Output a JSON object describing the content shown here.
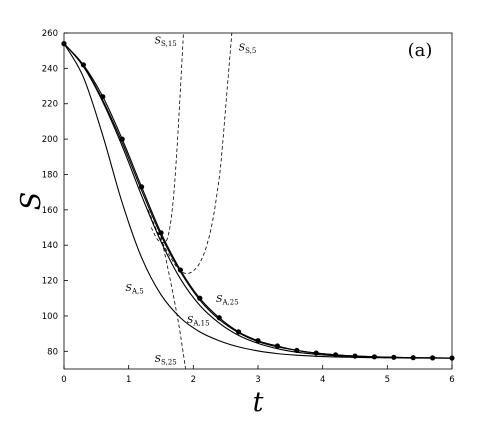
{
  "chart_data": {
    "type": "line",
    "panel_label": "(a)",
    "xlabel": "t",
    "ylabel": "S",
    "xlim": [
      0,
      6
    ],
    "ylim": [
      70,
      260
    ],
    "xticks": [
      0,
      1,
      2,
      3,
      4,
      5,
      6
    ],
    "yticks": [
      80,
      100,
      120,
      140,
      160,
      180,
      200,
      220,
      240,
      260
    ],
    "grid": false,
    "legend": "none",
    "series": [
      {
        "name": "",
        "style": "solid",
        "markers": "dot",
        "x": [
          0,
          0.3,
          0.6,
          0.9,
          1.2,
          1.5,
          1.8,
          2.1,
          2.4,
          2.7,
          3.0,
          3.3,
          3.6,
          3.9,
          4.2,
          4.5,
          4.8,
          5.1,
          5.4,
          5.7,
          6.0
        ],
        "y": [
          254,
          242,
          224,
          200,
          173,
          147,
          126,
          110,
          99,
          91,
          86,
          83,
          80.5,
          79,
          78,
          77.3,
          76.9,
          76.6,
          76.4,
          76.3,
          76.2
        ]
      },
      {
        "name": "S_A,25",
        "style": "solid",
        "x": [
          0,
          0.3,
          0.6,
          0.9,
          1.2,
          1.5,
          1.8,
          2.1,
          2.4,
          2.7,
          3.0,
          3.3,
          3.6,
          3.9,
          4.2,
          4.5,
          4.8,
          5.1,
          5.4,
          5.7,
          6.0
        ],
        "y": [
          254,
          241.5,
          222,
          198,
          171,
          145.5,
          125,
          109,
          98,
          90.5,
          85.5,
          82.5,
          80.5,
          79,
          78,
          77.3,
          76.9,
          76.6,
          76.4,
          76.3,
          76.2
        ]
      },
      {
        "name": "S_A,15",
        "style": "solid",
        "x": [
          0,
          0.3,
          0.6,
          0.9,
          1.2,
          1.5,
          1.8,
          2.1,
          2.4,
          2.7,
          3.0,
          3.3,
          3.6,
          3.9,
          4.2,
          4.5,
          4.8,
          5.1,
          5.4,
          5.7,
          6.0
        ],
        "y": [
          254,
          241,
          221,
          196,
          168,
          142,
          121,
          106,
          96,
          89,
          84.5,
          81.5,
          79.5,
          78.3,
          77.5,
          77,
          76.7,
          76.5,
          76.3,
          76.2,
          76.2
        ]
      },
      {
        "name": "S_A,5",
        "style": "solid",
        "x": [
          0,
          0.3,
          0.6,
          0.9,
          1.2,
          1.5,
          1.8,
          2.1,
          2.4,
          2.7,
          3.0,
          3.3,
          3.6,
          3.9,
          4.2,
          4.5,
          4.8,
          5.1,
          5.4,
          5.7,
          6.0
        ],
        "y": [
          254,
          235,
          202,
          164,
          133,
          112,
          99,
          91,
          86,
          82.5,
          80.2,
          78.7,
          77.8,
          77.2,
          76.8,
          76.6,
          76.4,
          76.3,
          76.2,
          76.2,
          76.2
        ]
      },
      {
        "name": "S_S,5",
        "style": "dashed",
        "x": [
          1.3,
          1.5,
          1.7,
          1.8,
          1.9,
          2.0,
          2.1,
          2.2,
          2.3,
          2.4,
          2.45,
          2.5,
          2.55,
          2.6
        ],
        "y": [
          160,
          143,
          130,
          125.5,
          124,
          125.5,
          130,
          139,
          154,
          178,
          196,
          218,
          240,
          262
        ]
      },
      {
        "name": "S_S,15",
        "style": "dashed",
        "x": [
          1.35,
          1.45,
          1.55,
          1.6,
          1.65,
          1.7,
          1.75,
          1.8,
          1.85
        ],
        "y": [
          150,
          143,
          141.5,
          144,
          153,
          170,
          196,
          228,
          262
        ]
      },
      {
        "name": "S_S,25",
        "style": "dashed",
        "x": [
          1.5,
          1.6,
          1.7,
          1.78,
          1.84,
          1.88
        ],
        "y": [
          145,
          128,
          110,
          94,
          80,
          70
        ]
      }
    ],
    "annotations": [
      {
        "base": "S",
        "sub": "A,5",
        "x": 0.95,
        "y": 114
      },
      {
        "base": "S",
        "sub": "A,15",
        "x": 1.9,
        "y": 96
      },
      {
        "base": "S",
        "sub": "A,25",
        "x": 2.35,
        "y": 108
      },
      {
        "base": "S",
        "sub": "S,15",
        "x": 1.4,
        "y": 254
      },
      {
        "base": "S",
        "sub": "S,5",
        "x": 2.7,
        "y": 250
      },
      {
        "base": "S",
        "sub": "S,25",
        "x": 1.4,
        "y": 74
      }
    ]
  }
}
